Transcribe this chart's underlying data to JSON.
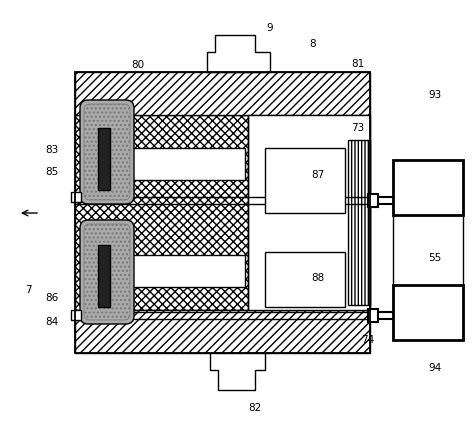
{
  "bg_color": "#ffffff",
  "lw": 1.0,
  "lw_thick": 2.0,
  "gray_light": "#cccccc",
  "gray_med": "#999999",
  "gray_dark": "#444444",
  "figsize": [
    4.76,
    4.26
  ],
  "dpi": 100
}
